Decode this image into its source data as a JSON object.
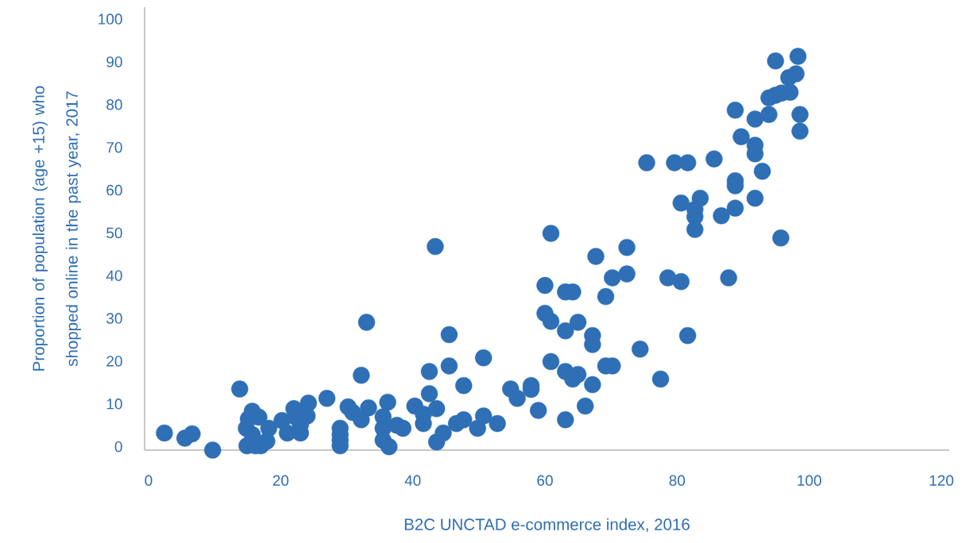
{
  "chart_data": {
    "type": "scatter",
    "xlabel": "B2C UNCTAD e-commerce index, 2016",
    "ylabel": "Proportion of population (age +15) who shopped online in the past year, 2017",
    "xlim": [
      -0.6,
      121.2
    ],
    "ylim": [
      -0.8,
      102.8
    ],
    "xticks": [
      0,
      20,
      40,
      60,
      80,
      100,
      120
    ],
    "yticks": [
      0,
      10,
      20,
      30,
      40,
      50,
      60,
      70,
      80,
      90,
      100
    ],
    "marker": "circle",
    "color": "#2e6fb5",
    "x": [
      2.4,
      5.5,
      6.6,
      9.7,
      13.8,
      14.8,
      15.1,
      15.7,
      16.7,
      14.9,
      16.2,
      17.0,
      15.7,
      17.9,
      18.2,
      20.2,
      21.0,
      22.0,
      22.2,
      23.0,
      23.0,
      24.2,
      24.0,
      27.0,
      30.2,
      30.9,
      32.2,
      32.2,
      33.0,
      33.3,
      29.0,
      29.0,
      29.0,
      29.0,
      35.5,
      35.5,
      35.5,
      36.2,
      36.4,
      37.6,
      38.5,
      40.3,
      41.6,
      41.6,
      42.5,
      42.5,
      43.4,
      43.6,
      43.6,
      44.6,
      45.5,
      45.5,
      46.6,
      47.7,
      47.7,
      49.8,
      50.7,
      50.7,
      52.8,
      54.8,
      55.8,
      57.9,
      57.9,
      59.0,
      60.0,
      60.0,
      60.9,
      60.9,
      60.9,
      63.1,
      64.2,
      63.1,
      63.1,
      64.2,
      65.0,
      65.0,
      63.1,
      66.1,
      67.2,
      67.2,
      67.2,
      67.7,
      69.2,
      70.2,
      69.2,
      70.2,
      72.4,
      72.4,
      74.4,
      75.4,
      77.5,
      78.6,
      79.6,
      81.6,
      80.6,
      80.6,
      81.6,
      82.7,
      82.7,
      82.7,
      83.5,
      85.6,
      86.7,
      87.8,
      88.8,
      88.8,
      88.8,
      88.8,
      89.7,
      91.8,
      91.8,
      91.8,
      91.8,
      92.9,
      93.9,
      93.9,
      94.9,
      94.9,
      95.8,
      95.7,
      96.9,
      97.1,
      98.0,
      98.3,
      98.6,
      98.6
    ],
    "values": [
      3.2,
      2.0,
      3.0,
      -0.8,
      13.5,
      4.3,
      6.5,
      8.3,
      6.9,
      0.2,
      0.2,
      0.2,
      2.8,
      1.3,
      4.3,
      6.1,
      3.2,
      8.9,
      7.0,
      3.2,
      5.2,
      10.2,
      7.2,
      11.3,
      9.3,
      8.0,
      6.3,
      16.7,
      29.1,
      9.1,
      4.3,
      2.8,
      1.5,
      0.2,
      7.0,
      4.3,
      1.5,
      10.4,
      0.0,
      5.0,
      4.3,
      9.5,
      7.6,
      5.4,
      12.4,
      17.6,
      46.8,
      8.9,
      1.1,
      3.2,
      18.9,
      26.2,
      5.4,
      14.3,
      6.3,
      4.3,
      20.8,
      7.2,
      5.4,
      13.5,
      11.3,
      14.3,
      13.4,
      8.5,
      37.7,
      31.2,
      29.3,
      19.9,
      49.9,
      36.2,
      36.2,
      27.1,
      17.6,
      15.8,
      16.9,
      29.1,
      6.3,
      9.5,
      26.0,
      23.9,
      14.5,
      44.5,
      35.1,
      39.5,
      18.9,
      18.9,
      40.4,
      46.6,
      22.8,
      66.4,
      15.8,
      39.5,
      66.4,
      66.4,
      57.0,
      38.6,
      26.0,
      55.5,
      53.8,
      50.8,
      58.1,
      67.3,
      54.0,
      39.5,
      55.8,
      62.2,
      61.0,
      78.7,
      72.5,
      70.5,
      68.5,
      58.1,
      76.6,
      64.4,
      81.6,
      77.7,
      90.2,
      82.2,
      82.7,
      48.8,
      86.3,
      82.9,
      87.2,
      91.3,
      77.7,
      73.8
    ]
  }
}
